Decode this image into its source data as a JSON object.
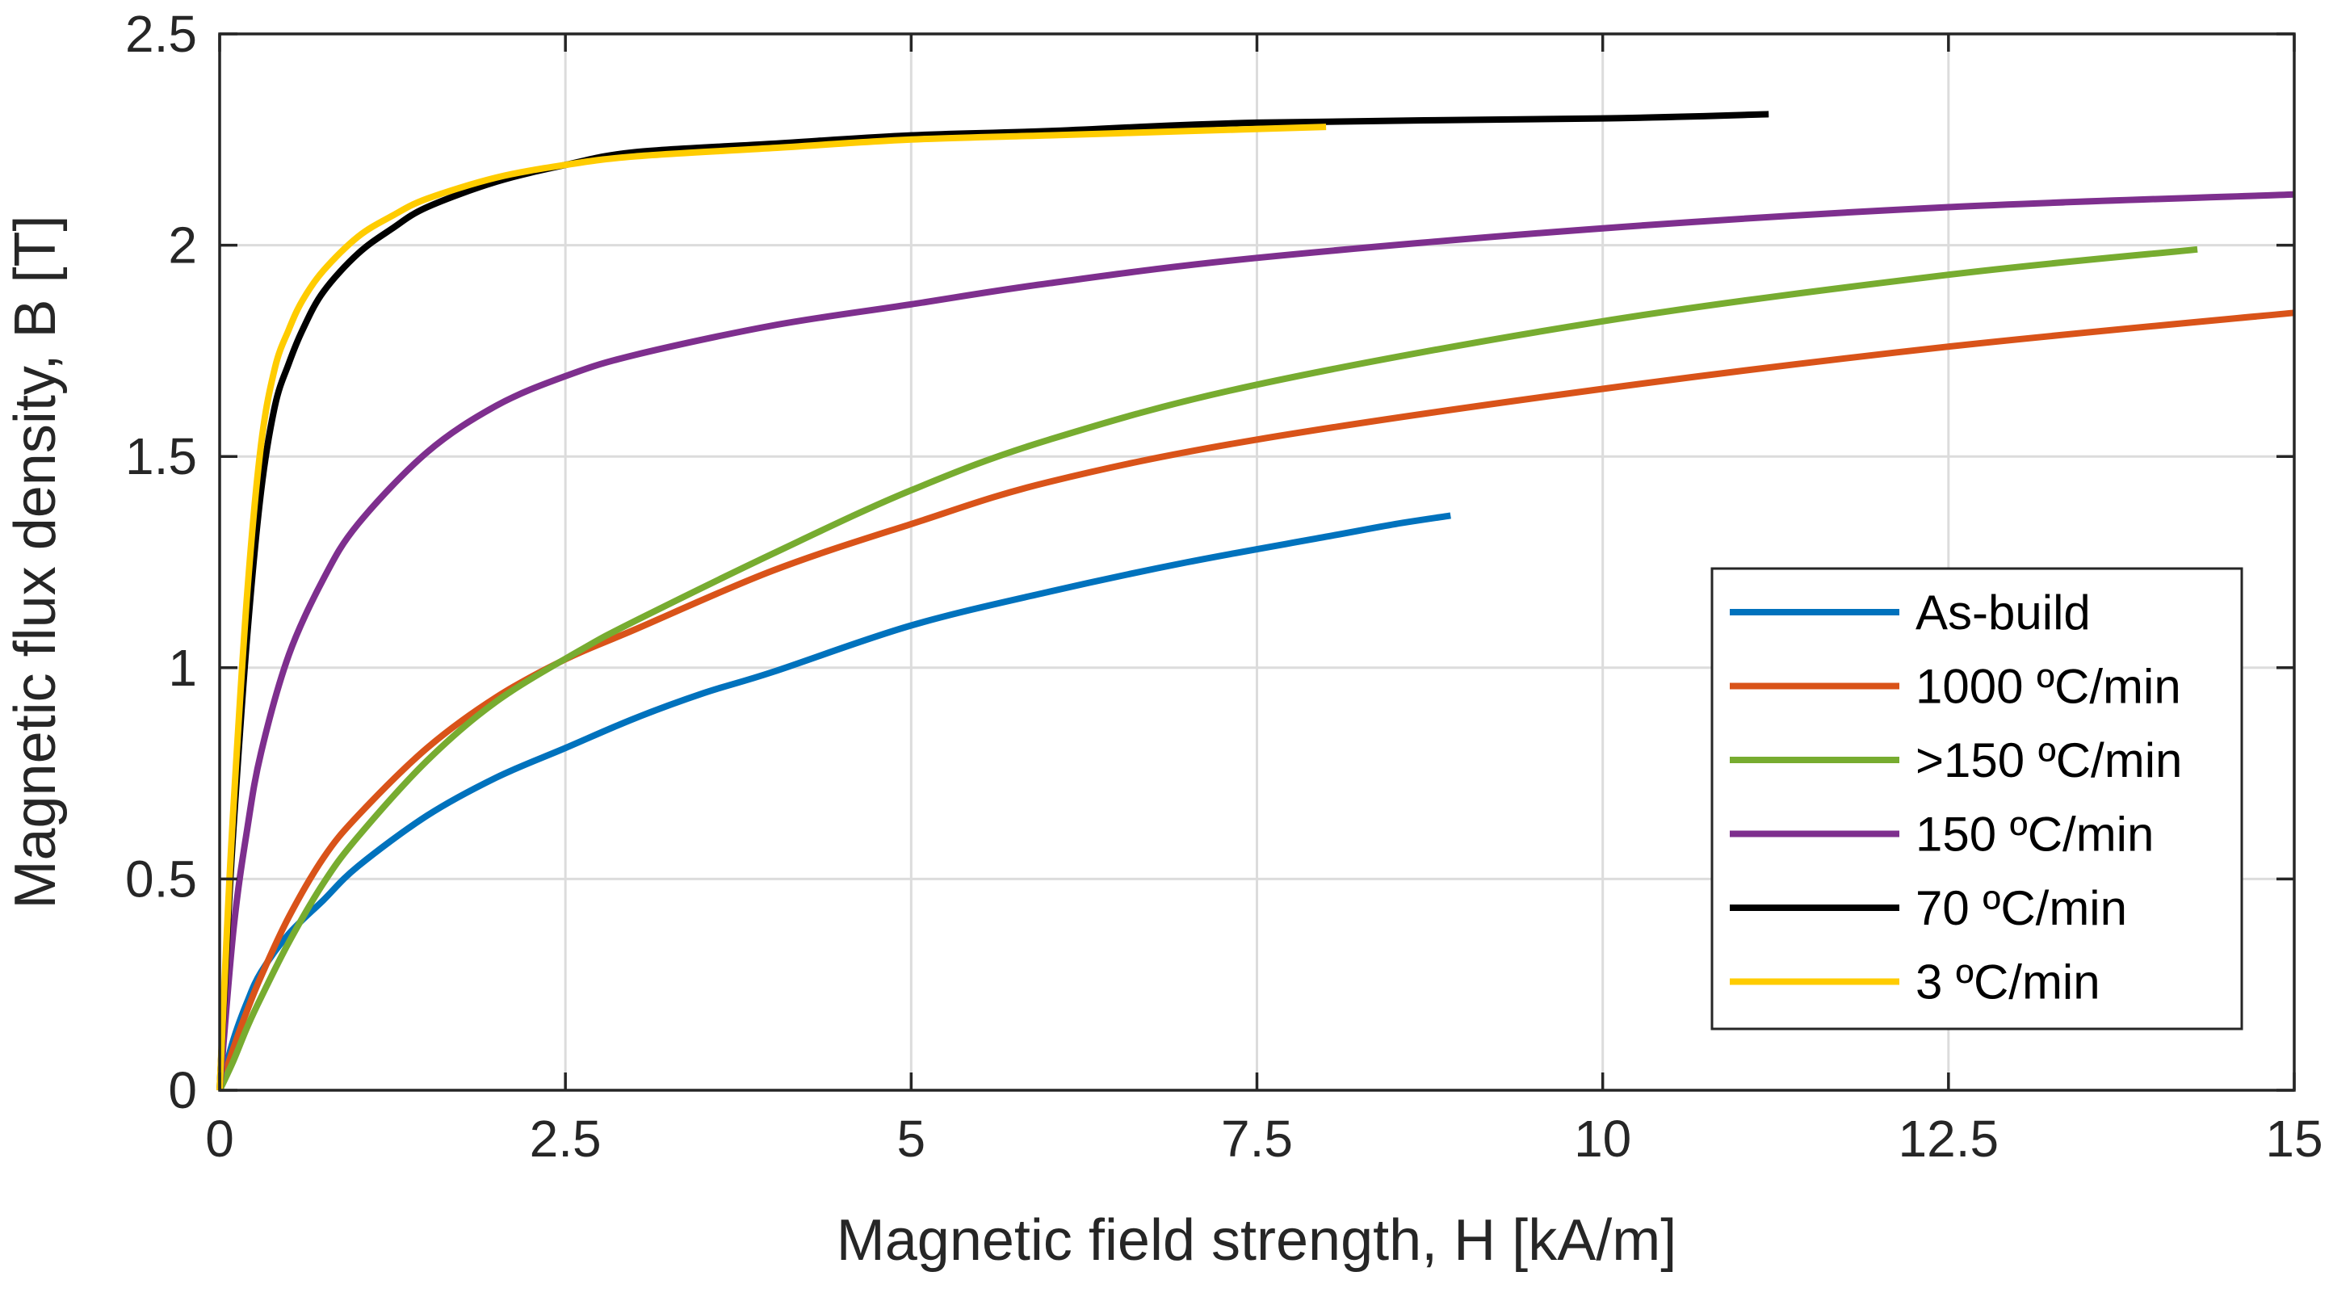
{
  "chart_data": {
    "type": "line",
    "title": "",
    "xlabel": "Magnetic field strength, H [kA/m]",
    "ylabel": "Magnetic flux density, B [T]",
    "xlim": [
      0,
      15
    ],
    "ylim": [
      0,
      2.5
    ],
    "xticks": [
      0,
      2.5,
      5,
      7.5,
      10,
      12.5,
      15
    ],
    "xtick_labels": [
      "0",
      "2.5",
      "5",
      "7.5",
      "10",
      "12.5",
      "15"
    ],
    "yticks": [
      0,
      0.5,
      1,
      1.5,
      2,
      2.5
    ],
    "ytick_labels": [
      "0",
      "0.5",
      "1",
      "1.5",
      "2",
      "2.5"
    ],
    "grid": true,
    "legend_position": "lower-right",
    "series": [
      {
        "name": "As-build",
        "color": "#0072BD",
        "x": [
          0,
          0.1,
          0.2,
          0.3,
          0.5,
          0.75,
          1.0,
          1.5,
          2.0,
          2.5,
          3.0,
          3.5,
          4.0,
          5.0,
          6.0,
          7.0,
          8.0,
          8.5,
          8.9
        ],
        "y": [
          0,
          0.12,
          0.21,
          0.28,
          0.37,
          0.45,
          0.53,
          0.65,
          0.74,
          0.81,
          0.88,
          0.94,
          0.99,
          1.1,
          1.18,
          1.25,
          1.31,
          1.34,
          1.36
        ]
      },
      {
        "name": "1000 ºC/min",
        "color": "#D95319",
        "x": [
          0,
          0.1,
          0.2,
          0.3,
          0.5,
          0.75,
          1.0,
          1.5,
          2.0,
          2.5,
          3.0,
          4.0,
          5.0,
          6.0,
          7.5,
          10.0,
          12.5,
          15.0
        ],
        "y": [
          0,
          0.1,
          0.19,
          0.27,
          0.41,
          0.55,
          0.65,
          0.81,
          0.93,
          1.02,
          1.09,
          1.23,
          1.34,
          1.44,
          1.54,
          1.66,
          1.76,
          1.84
        ]
      },
      {
        "name": ">150 ºC/min",
        "color": "#77AC30",
        "x": [
          0,
          0.1,
          0.2,
          0.3,
          0.5,
          0.75,
          1.0,
          1.5,
          2.0,
          2.6,
          3.0,
          4.0,
          5.0,
          6.0,
          7.5,
          10.0,
          12.5,
          14.3
        ],
        "y": [
          0,
          0.07,
          0.15,
          0.22,
          0.35,
          0.49,
          0.6,
          0.78,
          0.92,
          1.04,
          1.11,
          1.27,
          1.42,
          1.54,
          1.67,
          1.82,
          1.93,
          1.99
        ]
      },
      {
        "name": "150 ºC/min",
        "color": "#7E2F8E",
        "x": [
          0,
          0.1,
          0.2,
          0.3,
          0.5,
          0.75,
          1.0,
          1.5,
          2.0,
          2.5,
          3.0,
          4.0,
          5.0,
          6.0,
          7.5,
          10.0,
          12.5,
          15.0
        ],
        "y": [
          0,
          0.38,
          0.62,
          0.8,
          1.03,
          1.21,
          1.34,
          1.51,
          1.62,
          1.69,
          1.74,
          1.81,
          1.86,
          1.91,
          1.97,
          2.04,
          2.09,
          2.12
        ]
      },
      {
        "name": "70 ºC/min",
        "color": "#000000",
        "x": [
          0,
          0.05,
          0.1,
          0.2,
          0.3,
          0.4,
          0.5,
          0.6,
          0.75,
          1.0,
          1.25,
          1.5,
          2.0,
          2.5,
          3.0,
          4.0,
          5.0,
          6.0,
          7.5,
          10.0,
          11.2
        ],
        "y": [
          0,
          0.33,
          0.62,
          1.08,
          1.42,
          1.62,
          1.72,
          1.8,
          1.89,
          1.98,
          2.04,
          2.09,
          2.15,
          2.19,
          2.22,
          2.24,
          2.26,
          2.27,
          2.29,
          2.3,
          2.31
        ]
      },
      {
        "name": "3 ºC/min",
        "color": "#FFCC00",
        "x": [
          0,
          0.05,
          0.1,
          0.2,
          0.3,
          0.4,
          0.5,
          0.6,
          0.75,
          1.0,
          1.25,
          1.5,
          2.0,
          2.5,
          3.0,
          4.0,
          5.0,
          6.0,
          7.0,
          8.0
        ],
        "y": [
          0,
          0.36,
          0.67,
          1.18,
          1.53,
          1.71,
          1.8,
          1.87,
          1.94,
          2.02,
          2.07,
          2.11,
          2.16,
          2.19,
          2.21,
          2.23,
          2.25,
          2.26,
          2.27,
          2.28
        ]
      }
    ]
  }
}
